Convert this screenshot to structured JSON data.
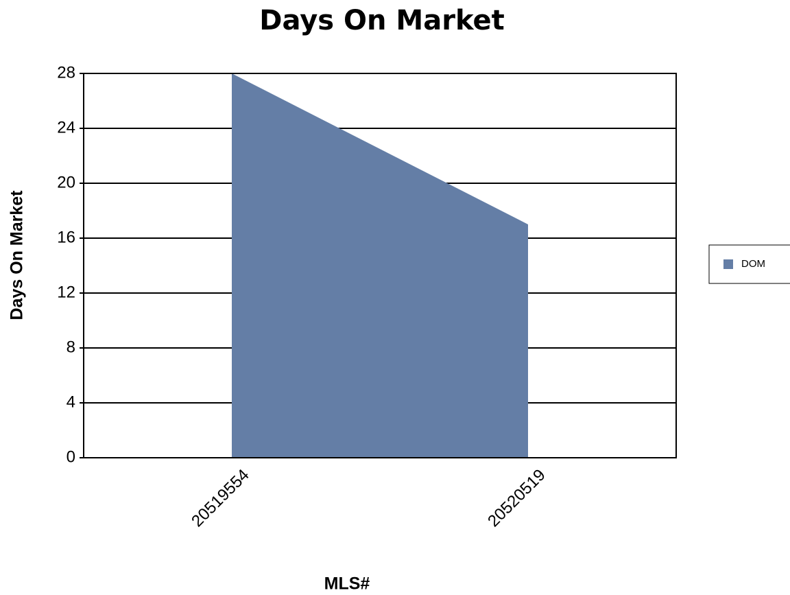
{
  "chart_data": {
    "type": "area",
    "title": "Days On Market",
    "x_label": "MLS#",
    "y_label": "Days On Market",
    "categories": [
      "20519554",
      "20520519"
    ],
    "series": [
      {
        "name": "DOM",
        "color": "#647ea6",
        "values": [
          28,
          17
        ]
      }
    ],
    "ylim": [
      0,
      28
    ],
    "yticks": [
      0,
      4,
      8,
      12,
      16,
      20,
      24,
      28
    ],
    "grid": true,
    "legend": "right"
  }
}
